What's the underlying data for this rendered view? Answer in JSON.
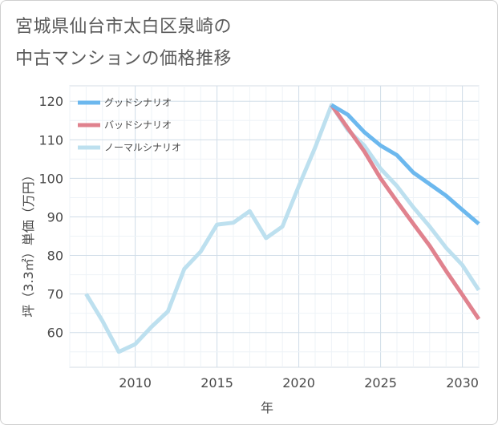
{
  "title_lines": [
    "宮城県仙台市太白区泉崎の",
    "中古マンションの価格推移"
  ],
  "chart_data": {
    "type": "line",
    "xlabel": "年",
    "ylabel": "坪（3.3㎡）単価（万円）",
    "xlim": [
      2006,
      2031
    ],
    "ylim": [
      51,
      124
    ],
    "x_ticks": [
      2010,
      2015,
      2020,
      2025,
      2030
    ],
    "y_ticks": [
      60,
      70,
      80,
      90,
      100,
      110,
      120
    ],
    "grid": true,
    "legend_position": "top-left",
    "series": [
      {
        "name": "グッドシナリオ",
        "color": "#6cb8ee",
        "x": [
          2022,
          2023,
          2024,
          2025,
          2026,
          2027,
          2028,
          2029,
          2030,
          2031
        ],
        "y": [
          119,
          116.5,
          112,
          108.5,
          106,
          101.5,
          98.5,
          95.5,
          91.8,
          88.2
        ]
      },
      {
        "name": "バッドシナリオ",
        "color": "#e0828e",
        "x": [
          2022,
          2023,
          2024,
          2025,
          2026,
          2027,
          2028,
          2029,
          2030,
          2031
        ],
        "y": [
          119,
          113,
          107,
          100,
          94,
          88.2,
          82.5,
          76,
          69.8,
          63.5
        ]
      },
      {
        "name": "ノーマルシナリオ",
        "color": "#bde0ef",
        "x": [
          2007,
          2008,
          2009,
          2010,
          2011,
          2012,
          2013,
          2014,
          2015,
          2016,
          2017,
          2018,
          2019,
          2020,
          2021,
          2022,
          2023,
          2024,
          2025,
          2026,
          2027,
          2028,
          2029,
          2030,
          2031
        ],
        "y": [
          70,
          63,
          55,
          57,
          61.5,
          65.5,
          76.5,
          81,
          88,
          88.5,
          91.5,
          84.5,
          87.5,
          98,
          108,
          119,
          112.5,
          108.5,
          102.5,
          98,
          92.5,
          87.5,
          82,
          77.5,
          71
        ]
      }
    ]
  }
}
